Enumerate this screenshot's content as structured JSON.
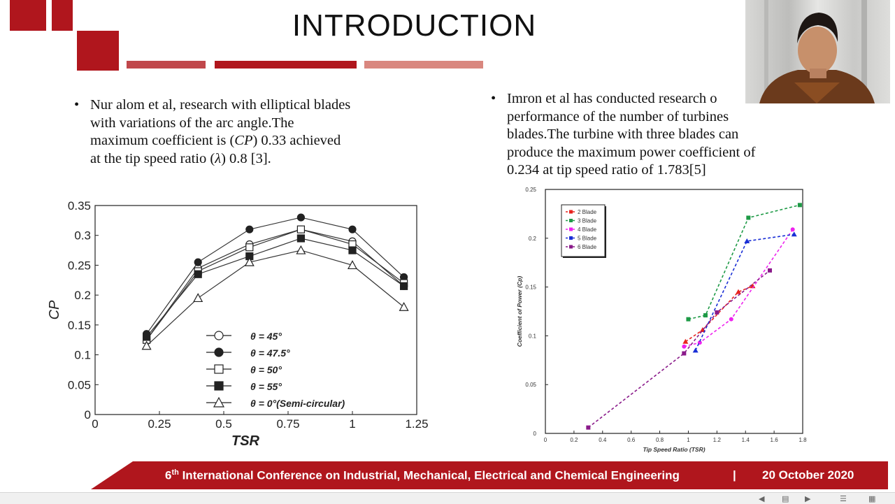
{
  "slide": {
    "title": "INTRODUCTION",
    "accent_color": "#b0161d",
    "left_bullet": {
      "line1": "Nur alom et al, research with elliptical blades",
      "line2": "with variations of the arc angle.The",
      "line3_pre": "maximum coefficient is (",
      "line3_sym": "CP",
      "line3_post": ") 0.33 achieved",
      "line4_pre": "at the tip speed ratio (",
      "line4_sym": "λ",
      "line4_post": ") 0.8 [3]."
    },
    "right_bullet": {
      "line1": "Imron et al has conducted research o",
      "line2": "performance of the number of turbines",
      "line3": "blades.The turbine with three blades can",
      "line4": "produce the maximum power coefficient of",
      "line5": "0.234 at tip speed ratio of 1.783[5]"
    },
    "bullet_char": "•"
  },
  "footer": {
    "ordinal_num": "6",
    "ordinal_sup": "th",
    "text": " International Conference on Industrial, Mechanical, Electrical  and Chemical Engineering",
    "separator": "|",
    "date": "20 October 2020"
  },
  "player": {
    "icons": [
      "prev-icon",
      "notes-icon",
      "next-icon",
      "menu-icon",
      "grid-icon"
    ]
  },
  "chart_data": [
    {
      "type": "line",
      "xlabel": "TSR",
      "ylabel": "CP",
      "xlim": [
        0,
        1.25
      ],
      "ylim": [
        0,
        0.35
      ],
      "xticks": [
        "0",
        "0.25",
        "0.5",
        "0.75",
        "1",
        "1.25"
      ],
      "yticks": [
        "0",
        "0.05",
        "0.1",
        "0.15",
        "0.2",
        "0.25",
        "0.3",
        "0.35"
      ],
      "x": [
        0.2,
        0.4,
        0.6,
        0.8,
        1.0,
        1.2
      ],
      "legend_position": "bottom-center",
      "series": [
        {
          "name": "θ = 45°",
          "marker": "circle-open",
          "values": [
            0.125,
            0.245,
            0.285,
            0.31,
            0.29,
            0.215
          ]
        },
        {
          "name": "θ = 47.5°",
          "marker": "circle-filled",
          "values": [
            0.135,
            0.255,
            0.31,
            0.33,
            0.31,
            0.23
          ]
        },
        {
          "name": "θ = 50°",
          "marker": "square-open",
          "values": [
            0.125,
            0.24,
            0.28,
            0.31,
            0.285,
            0.22
          ]
        },
        {
          "name": "θ = 55°",
          "marker": "square-filled",
          "values": [
            0.13,
            0.235,
            0.265,
            0.295,
            0.275,
            0.215
          ]
        },
        {
          "name": "θ = 0°(Semi-circular)",
          "marker": "triangle-open",
          "values": [
            0.115,
            0.195,
            0.255,
            0.275,
            0.25,
            0.18
          ]
        }
      ]
    },
    {
      "type": "line",
      "xlabel": "Tip Speed Ratio (TSR)",
      "ylabel": "Coefficient of Power (Cp)",
      "xlim": [
        0,
        1.8
      ],
      "ylim": [
        0,
        0.25
      ],
      "xticks": [
        "0",
        "0.2",
        "0.4",
        "0.6",
        "0.8",
        "1",
        "1.2",
        "1.4",
        "1.6",
        "1.8"
      ],
      "yticks": [
        "0",
        "0.05",
        "0.1",
        "0.15",
        "0.2",
        "0.25"
      ],
      "legend_position": "top-left",
      "series": [
        {
          "name": "2 Blade",
          "color": "#e8231f",
          "x": [
            0.98,
            1.1,
            1.35,
            1.45
          ],
          "values": [
            0.094,
            0.106,
            0.145,
            0.151
          ]
        },
        {
          "name": "3 Blade",
          "color": "#1e9a46",
          "x": [
            1.0,
            1.12,
            1.42,
            1.78
          ],
          "values": [
            0.117,
            0.121,
            0.221,
            0.234
          ]
        },
        {
          "name": "4 Blade",
          "color": "#ee22ee",
          "x": [
            0.97,
            1.08,
            1.3,
            1.73
          ],
          "values": [
            0.089,
            0.093,
            0.117,
            0.209
          ]
        },
        {
          "name": "5 Blade",
          "color": "#1a2fd6",
          "x": [
            1.05,
            1.41,
            1.74
          ],
          "values": [
            0.085,
            0.197,
            0.204
          ]
        },
        {
          "name": "6 Blade",
          "color": "#8a1a8a",
          "x": [
            0.3,
            0.97,
            1.2,
            1.57
          ],
          "values": [
            0.006,
            0.082,
            0.124,
            0.167
          ]
        }
      ]
    }
  ]
}
